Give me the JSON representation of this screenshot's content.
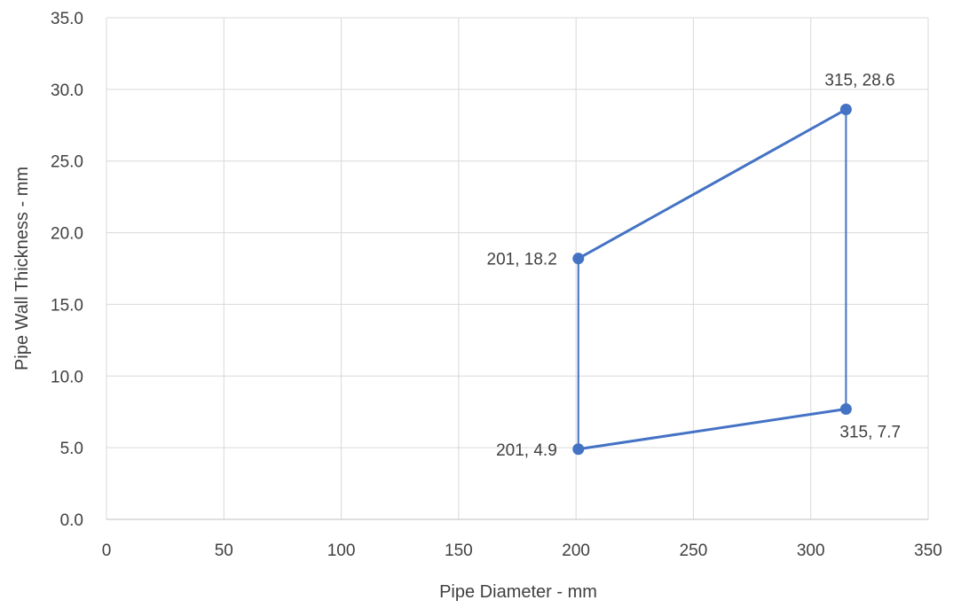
{
  "chart_data": {
    "type": "scatter",
    "title": "",
    "xlabel": "Pipe Diameter - mm",
    "ylabel": "Pipe Wall Thickness - mm",
    "xlim": [
      0,
      350
    ],
    "ylim": [
      0,
      35
    ],
    "xticks": [
      "0",
      "50",
      "100",
      "150",
      "200",
      "250",
      "300",
      "350"
    ],
    "yticks": [
      "0.0",
      "5.0",
      "10.0",
      "15.0",
      "20.0",
      "25.0",
      "30.0",
      "35.0"
    ],
    "grid": true,
    "legend": "none",
    "series": [
      {
        "color": "#4472C4",
        "points": [
          {
            "x": 201,
            "y": 4.9,
            "label": "201, 4.9"
          },
          {
            "x": 201,
            "y": 18.2,
            "label": "201, 18.2"
          },
          {
            "x": 315,
            "y": 28.6,
            "label": "315, 28.6"
          },
          {
            "x": 315,
            "y": 7.7,
            "label": "315, 7.7"
          },
          {
            "x": 201,
            "y": 4.9
          }
        ]
      }
    ]
  }
}
